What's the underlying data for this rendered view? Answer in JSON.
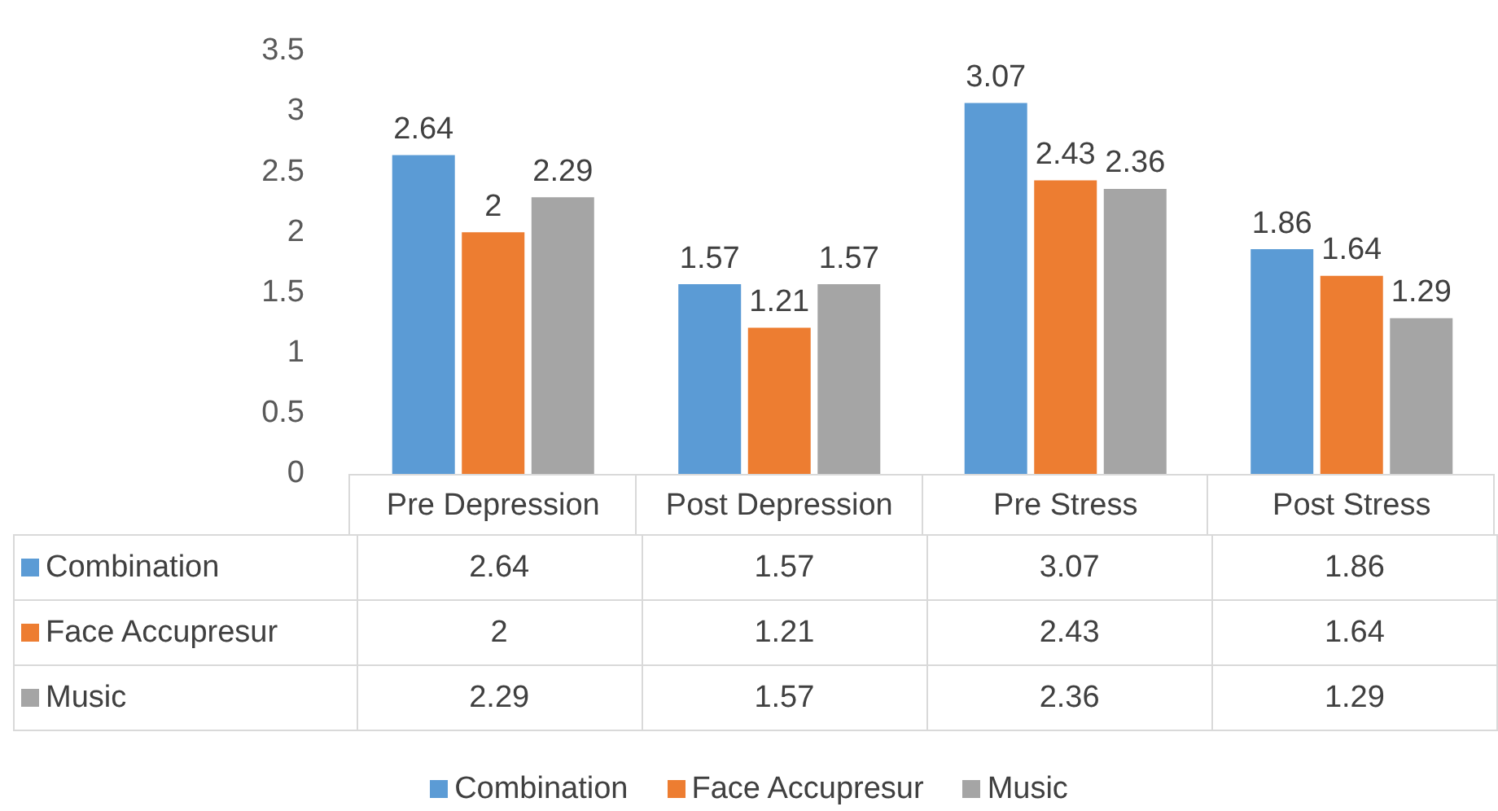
{
  "chart_data": {
    "type": "bar",
    "categories": [
      "Pre Depression",
      "Post Depression",
      "Pre Stress",
      "Post Stress"
    ],
    "series": [
      {
        "name": "Combination",
        "color": "#5b9bd5",
        "values": [
          2.64,
          1.57,
          3.07,
          1.86
        ],
        "value_labels": [
          "2.64",
          "1.57",
          "3.07",
          "1.86"
        ]
      },
      {
        "name": "Face Accupresur",
        "color": "#ed7d31",
        "values": [
          2,
          1.21,
          2.43,
          1.64
        ],
        "value_labels": [
          "2",
          "1.21",
          "2.43",
          "1.64"
        ]
      },
      {
        "name": "Music",
        "color": "#a5a5a5",
        "values": [
          2.29,
          1.57,
          2.36,
          1.29
        ],
        "value_labels": [
          "2.29",
          "1.57",
          "2.36",
          "1.29"
        ]
      }
    ],
    "ylim": [
      0,
      3.5
    ],
    "yticks": [
      0,
      0.5,
      1,
      1.5,
      2,
      2.5,
      3,
      3.5
    ],
    "annotations": [
      "2.64",
      "1.57",
      "3.07",
      "1.86",
      "2",
      "1.21",
      "2.43",
      "1.64",
      "2.29",
      "1.57",
      "2.36",
      "1.29"
    ],
    "grid": false,
    "legend": "bottom",
    "data_labels": true
  }
}
